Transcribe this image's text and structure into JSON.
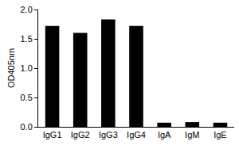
{
  "chart_data": {
    "type": "bar",
    "categories": [
      "IgG1",
      "IgG2",
      "IgG3",
      "IgG4",
      "IgA",
      "IgM",
      "IgE"
    ],
    "values": [
      1.72,
      1.6,
      1.83,
      1.72,
      0.07,
      0.08,
      0.07
    ],
    "color": "#000000",
    "y_label": "OD405nm",
    "ylim": [
      0,
      2
    ],
    "yticks": [
      {
        "value": 0,
        "label": "0.0"
      },
      0.5,
      {
        "value": 1,
        "label": "1.0"
      },
      1.5,
      {
        "value": 2,
        "label": "2.0"
      }
    ],
    "grid": false
  }
}
